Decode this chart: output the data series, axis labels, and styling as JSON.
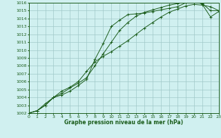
{
  "xlabel": "Graphe pression niveau de la mer (hPa)",
  "ylim": [
    1002,
    1016
  ],
  "xlim": [
    0,
    23
  ],
  "yticks": [
    1002,
    1003,
    1004,
    1005,
    1006,
    1007,
    1008,
    1009,
    1010,
    1011,
    1012,
    1013,
    1014,
    1015,
    1016
  ],
  "xticks": [
    0,
    1,
    2,
    3,
    4,
    5,
    6,
    7,
    8,
    9,
    10,
    11,
    12,
    13,
    14,
    15,
    16,
    17,
    18,
    19,
    20,
    21,
    22,
    23
  ],
  "line_color": "#1a5c1a",
  "bg_color": "#d0f0f0",
  "grid_color": "#a0c8c8",
  "line1": [
    1002.0,
    1002.3,
    1003.2,
    1004.0,
    1004.8,
    1005.3,
    1006.0,
    1007.3,
    1008.5,
    1009.2,
    1009.8,
    1010.5,
    1011.2,
    1012.0,
    1012.8,
    1013.5,
    1014.2,
    1014.8,
    1015.2,
    1015.6,
    1015.8,
    1015.7,
    1015.5,
    1015.0
  ],
  "line2": [
    1002.0,
    1002.3,
    1003.0,
    1004.0,
    1004.5,
    1005.2,
    1005.8,
    1006.5,
    1008.0,
    1009.5,
    1011.0,
    1012.5,
    1013.5,
    1014.3,
    1014.8,
    1015.1,
    1015.4,
    1015.7,
    1015.9,
    1016.1,
    1016.2,
    1015.9,
    1015.0,
    1015.0
  ],
  "line3": [
    1002.0,
    1002.3,
    1003.0,
    1004.0,
    1004.3,
    1004.8,
    1005.5,
    1006.3,
    1008.8,
    1010.8,
    1013.0,
    1013.8,
    1014.5,
    1014.6,
    1014.7,
    1014.9,
    1015.1,
    1015.3,
    1015.5,
    1016.0,
    1016.3,
    1015.8,
    1014.2,
    1014.9
  ]
}
